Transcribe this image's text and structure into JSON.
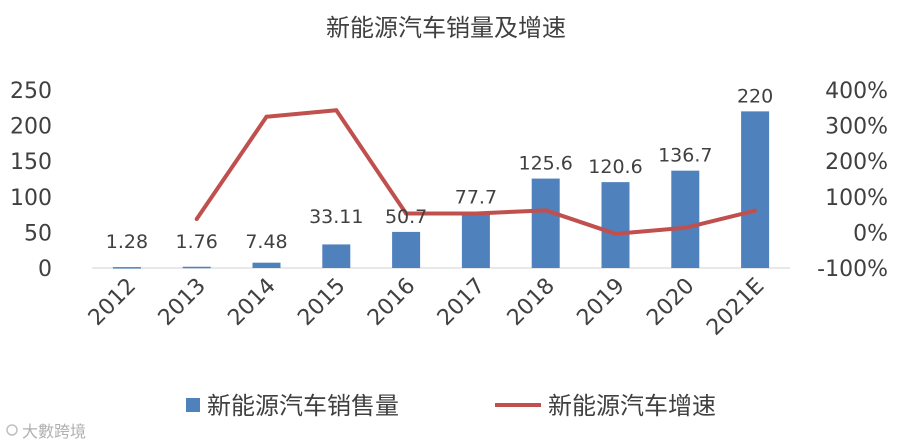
{
  "chart_data": {
    "type": "bar",
    "title": "新能源汽车销量及增速",
    "categories": [
      "2012",
      "2013",
      "2014",
      "2015",
      "2016",
      "2017",
      "2018",
      "2019",
      "2020",
      "2021E"
    ],
    "series": [
      {
        "name": "新能源汽车销售量",
        "type": "bar",
        "axis": "left",
        "color": "#4f81bd",
        "values": [
          1.28,
          1.76,
          7.48,
          33.11,
          50.7,
          77.7,
          125.6,
          120.6,
          136.7,
          220
        ],
        "labels": [
          "1.28",
          "1.76",
          "7.48",
          "33.11",
          "50.7",
          "77.7",
          "125.6",
          "120.6",
          "136.7",
          "220"
        ]
      },
      {
        "name": "新能源汽车增速",
        "type": "line",
        "axis": "right",
        "color": "#c0504d",
        "values": [
          null,
          0.375,
          3.25,
          3.43,
          0.53,
          0.53,
          0.62,
          -0.04,
          0.13,
          0.61
        ]
      }
    ],
    "y_left": {
      "ylim": [
        0,
        250
      ],
      "ticks": [
        "0",
        "50",
        "100",
        "150",
        "200",
        "250"
      ]
    },
    "y_right": {
      "ylim": [
        -1,
        4
      ],
      "ticks": [
        "-100%",
        "0%",
        "100%",
        "200%",
        "300%",
        "400%"
      ]
    },
    "grid": false,
    "legend_position": "bottom"
  },
  "watermark": "大數跨境"
}
